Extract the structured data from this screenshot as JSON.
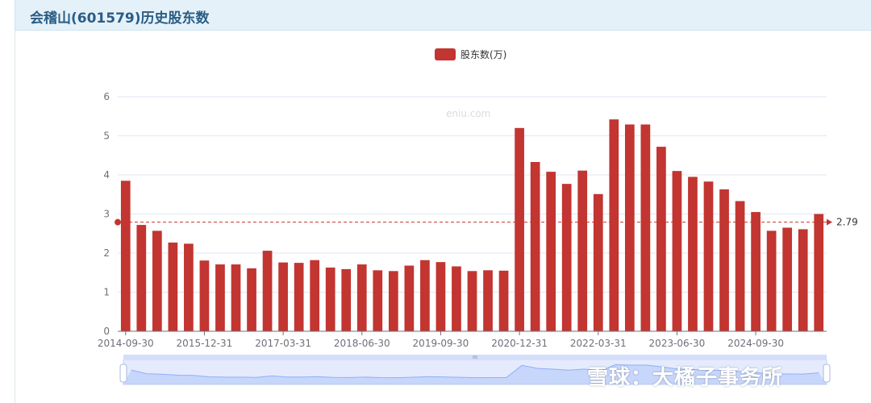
{
  "header": {
    "title": "会稽山(601579)历史股东数"
  },
  "watermark": {
    "chart_site": "eniu.com",
    "social": "雪球：大橘子事务所"
  },
  "colors": {
    "bar": "#c23531",
    "avg_line": "#c23531",
    "axis": "#6e7079",
    "grid": "#e0e6f1",
    "zoom_fill": "#d4defb",
    "zoom_line": "#8fb0f7"
  },
  "chart_data": {
    "type": "bar",
    "legend": {
      "label": "股东数(万)",
      "position": "top-center"
    },
    "ylim": [
      0,
      6
    ],
    "yticks": [
      0,
      1,
      2,
      3,
      4,
      5,
      6
    ],
    "grid": true,
    "x_tick_labels": [
      "2014-09-30",
      "2015-12-31",
      "2017-03-31",
      "2018-06-30",
      "2019-09-30",
      "2020-12-31",
      "2022-03-31",
      "2023-06-30",
      "2024-09-30"
    ],
    "x_tick_label_every": 5,
    "values": [
      3.85,
      2.72,
      2.57,
      2.27,
      2.24,
      1.81,
      1.71,
      1.71,
      1.61,
      2.06,
      1.76,
      1.75,
      1.82,
      1.63,
      1.59,
      1.71,
      1.56,
      1.54,
      1.68,
      1.82,
      1.77,
      1.66,
      1.54,
      1.56,
      1.55,
      5.2,
      4.33,
      4.08,
      3.77,
      4.11,
      3.51,
      5.42,
      5.29,
      5.29,
      4.72,
      4.1,
      3.95,
      3.83,
      3.63,
      3.33,
      3.05,
      2.57,
      2.65,
      2.61,
      3.0
    ],
    "mark_line": {
      "type": "average",
      "value": 2.79,
      "label": "2.79"
    },
    "data_zoom": {
      "start": 0,
      "end": 100
    }
  }
}
